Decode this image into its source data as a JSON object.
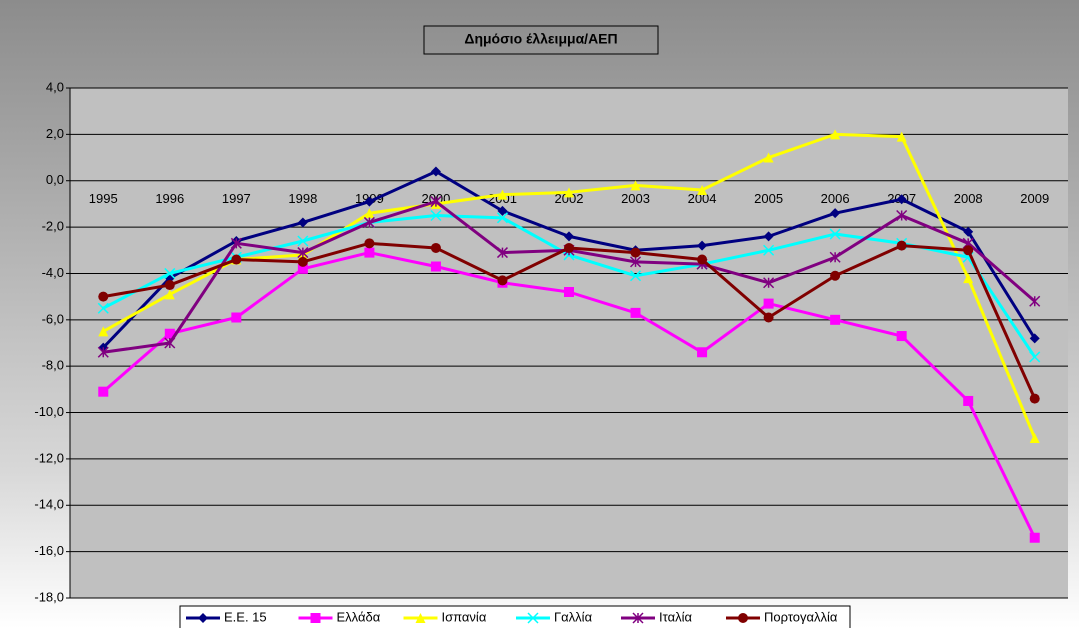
{
  "chart_data": {
    "type": "line",
    "title": "Δημόσιο έλλειμμα/ΑΕΠ",
    "categories": [
      "1995",
      "1996",
      "1997",
      "1998",
      "1999",
      "2000",
      "2001",
      "2002",
      "2003",
      "2004",
      "2005",
      "2006",
      "2007",
      "2008",
      "2009"
    ],
    "series": [
      {
        "name": "Ε.Ε. 15",
        "color": "#000080",
        "marker": "diamond",
        "values": [
          -7.2,
          -4.2,
          -2.6,
          -1.8,
          -0.9,
          0.4,
          -1.3,
          -2.4,
          -3.0,
          -2.8,
          -2.4,
          -1.4,
          -0.8,
          -2.2,
          -6.8
        ]
      },
      {
        "name": "Ελλάδα",
        "color": "#FF00FF",
        "marker": "square",
        "values": [
          -9.1,
          -6.6,
          -5.9,
          -3.8,
          -3.1,
          -3.7,
          -4.4,
          -4.8,
          -5.7,
          -7.4,
          -5.3,
          -6.0,
          -6.7,
          -9.5,
          -15.4
        ]
      },
      {
        "name": "Ισπανία",
        "color": "#FFFF00",
        "marker": "triangle",
        "values": [
          -6.5,
          -4.9,
          -3.4,
          -3.2,
          -1.4,
          -1.0,
          -0.6,
          -0.5,
          -0.2,
          -0.4,
          1.0,
          2.0,
          1.9,
          -4.2,
          -11.1
        ]
      },
      {
        "name": "Γαλλία",
        "color": "#00FFFF",
        "marker": "x",
        "values": [
          -5.5,
          -4.0,
          -3.3,
          -2.6,
          -1.8,
          -1.5,
          -1.6,
          -3.2,
          -4.1,
          -3.6,
          -3.0,
          -2.3,
          -2.7,
          -3.3,
          -7.6
        ]
      },
      {
        "name": "Ιταλία",
        "color": "#800080",
        "marker": "star",
        "values": [
          -7.4,
          -7.0,
          -2.7,
          -3.1,
          -1.8,
          -0.9,
          -3.1,
          -3.0,
          -3.5,
          -3.6,
          -4.4,
          -3.3,
          -1.5,
          -2.7,
          -5.2
        ]
      },
      {
        "name": "Πορτογαλλία",
        "color": "#800000",
        "marker": "circle",
        "values": [
          -5.0,
          -4.5,
          -3.4,
          -3.5,
          -2.7,
          -2.9,
          -4.3,
          -2.9,
          -3.1,
          -3.4,
          -5.9,
          -4.1,
          -2.8,
          -3.0,
          -9.4
        ]
      }
    ],
    "ylim": [
      -18,
      4
    ],
    "yticks": [
      {
        "value": -18,
        "label": "-18,0"
      },
      {
        "value": -16,
        "label": "-16,0"
      },
      {
        "value": -14,
        "label": "-14,0"
      },
      {
        "value": -12,
        "label": "-12,0"
      },
      {
        "value": -10,
        "label": "-10,0"
      },
      {
        "value": -8,
        "label": "-8,0"
      },
      {
        "value": -6,
        "label": "-6,0"
      },
      {
        "value": -4,
        "label": "-4,0"
      },
      {
        "value": -2,
        "label": "-2,0"
      },
      {
        "value": 0,
        "label": "0,0"
      },
      {
        "value": 2,
        "label": "2,0"
      },
      {
        "value": 4,
        "label": "4,0"
      }
    ],
    "grid": true,
    "legend": "bottom"
  }
}
